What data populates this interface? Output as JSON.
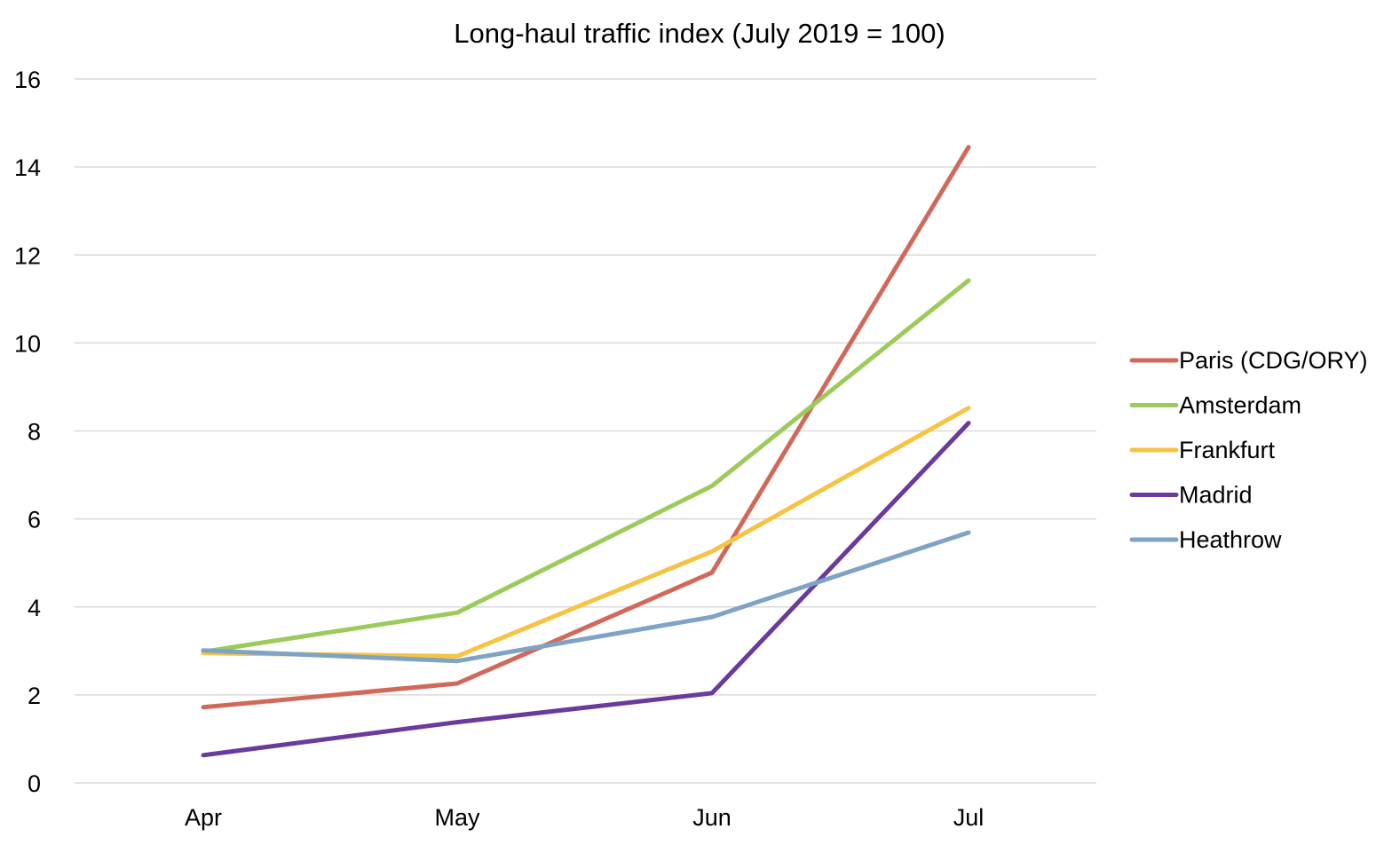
{
  "chart_data": {
    "type": "line",
    "title": "Long-haul traffic index (July 2019 = 100)",
    "xlabel": "",
    "ylabel": "",
    "categories": [
      "Apr",
      "May",
      "Jun",
      "Jul"
    ],
    "ylim": [
      0,
      16
    ],
    "yticks": [
      0,
      2,
      4,
      6,
      8,
      10,
      12,
      14,
      16
    ],
    "grid": true,
    "legend_position": "right",
    "series": [
      {
        "name": "Paris (CDG/ORY)",
        "color": "#d0695a",
        "values": [
          1.72,
          2.26,
          4.78,
          14.45
        ]
      },
      {
        "name": "Amsterdam",
        "color": "#9bcb5b",
        "values": [
          2.98,
          3.87,
          6.75,
          11.42
        ]
      },
      {
        "name": "Frankfurt",
        "color": "#f6c343",
        "values": [
          2.95,
          2.88,
          5.26,
          8.52
        ]
      },
      {
        "name": "Madrid",
        "color": "#6a3a9c",
        "values": [
          0.63,
          1.38,
          2.04,
          8.18
        ]
      },
      {
        "name": "Heathrow",
        "color": "#7fa3c4",
        "values": [
          3.01,
          2.77,
          3.77,
          5.69
        ]
      }
    ]
  }
}
